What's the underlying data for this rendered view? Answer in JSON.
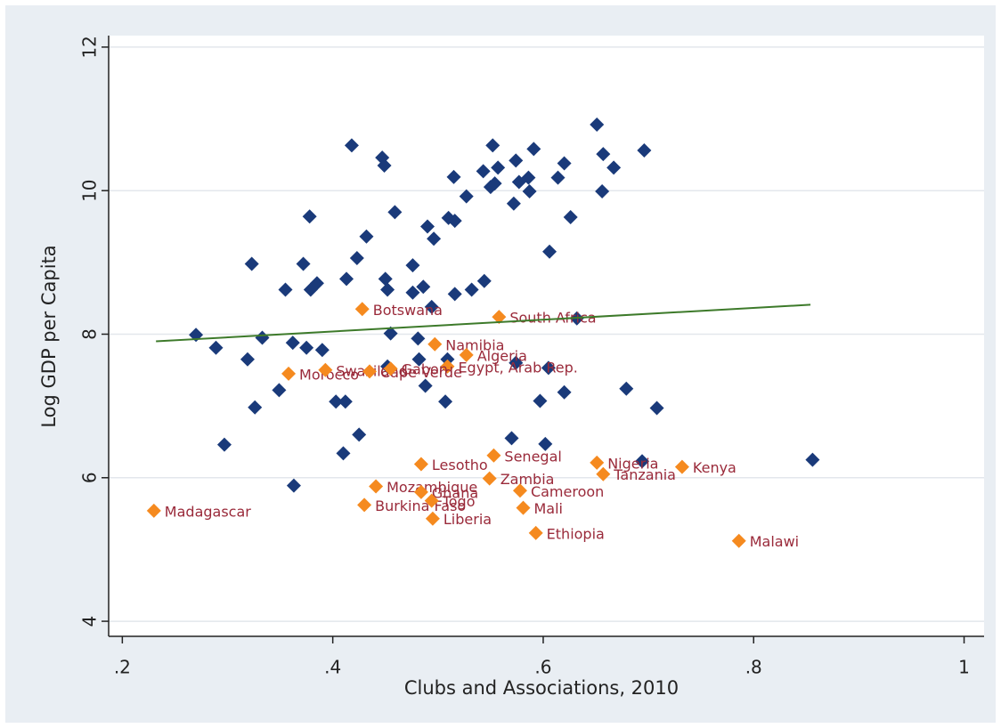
{
  "chart_data": {
    "type": "scatter",
    "x_label": "Clubs and Associations, 2010",
    "y_label": "Log GDP per Capita",
    "xlim": [
      0.187,
      1.019
    ],
    "ylim": [
      3.79,
      12.16
    ],
    "xticks": [
      {
        "value": 0.2,
        "label": ".2"
      },
      {
        "value": 0.4,
        "label": ".4"
      },
      {
        "value": 0.6,
        "label": ".6"
      },
      {
        "value": 0.8,
        "label": ".8"
      },
      1
    ],
    "yticks": [
      4,
      6,
      8,
      10,
      12
    ],
    "grid": true,
    "series": [
      {
        "color": "#1a3a7a",
        "x": [
          0.27,
          0.289,
          0.297,
          0.319,
          0.323,
          0.326,
          0.333,
          0.349,
          0.355,
          0.363,
          0.362,
          0.372,
          0.375,
          0.378,
          0.379,
          0.385,
          0.39,
          0.403,
          0.412,
          0.41,
          0.413,
          0.418,
          0.423,
          0.425,
          0.432,
          0.447,
          0.449,
          0.45,
          0.452,
          0.452,
          0.455,
          0.459,
          0.476,
          0.476,
          0.481,
          0.482,
          0.486,
          0.488,
          0.49,
          0.494,
          0.496,
          0.507,
          0.509,
          0.51,
          0.515,
          0.516,
          0.516,
          0.527,
          0.532,
          0.543,
          0.544,
          0.552,
          0.55,
          0.554,
          0.557,
          0.57,
          0.572,
          0.574,
          0.574,
          0.577,
          0.586,
          0.587,
          0.591,
          0.597,
          0.602,
          0.605,
          0.606,
          0.614,
          0.62,
          0.62,
          0.626,
          0.632,
          0.651,
          0.657,
          0.656,
          0.667,
          0.679,
          0.694,
          0.696,
          0.708,
          0.856
        ],
        "values": [
          7.99,
          7.81,
          6.46,
          7.65,
          8.98,
          6.98,
          7.95,
          7.22,
          8.62,
          5.89,
          7.88,
          8.98,
          7.81,
          9.64,
          8.62,
          8.71,
          7.78,
          7.06,
          7.06,
          6.34,
          8.77,
          10.63,
          9.06,
          6.6,
          9.36,
          10.46,
          10.35,
          8.77,
          8.62,
          7.55,
          8.01,
          9.7,
          8.96,
          8.58,
          7.94,
          7.65,
          8.66,
          7.28,
          9.5,
          8.38,
          9.33,
          7.06,
          7.65,
          9.62,
          10.19,
          9.58,
          8.56,
          9.92,
          8.62,
          10.27,
          8.74,
          10.63,
          10.05,
          10.1,
          10.32,
          6.55,
          9.82,
          10.42,
          7.6,
          10.12,
          10.18,
          9.99,
          10.58,
          7.07,
          6.47,
          7.53,
          9.15,
          10.18,
          7.19,
          10.38,
          9.63,
          8.22,
          10.92,
          10.51,
          9.99,
          10.32,
          7.24,
          6.23,
          10.56,
          6.97,
          6.25
        ]
      },
      {
        "color": "#f58a1f",
        "label_color": "#9a2a3a",
        "labels": [
          "Madagascar",
          "Botswana",
          "South Africa",
          "Namibia",
          "Algeria",
          "Egypt, Arab Rep.",
          "Morocco",
          "Swaziland",
          "Cape Verde",
          "Gabon",
          "Lesotho",
          "Senegal",
          "Nigeria",
          "Tanzania",
          "Kenya",
          "Zambia",
          "Mozambique",
          "Ghana",
          "Cameroon",
          "Burkina Faso",
          "Togo",
          "Mali",
          "Liberia",
          "Ethiopia",
          "Malawi"
        ],
        "x": [
          0.23,
          0.428,
          0.558,
          0.497,
          0.527,
          0.509,
          0.358,
          0.393,
          0.435,
          0.455,
          0.484,
          0.553,
          0.651,
          0.657,
          0.732,
          0.549,
          0.441,
          0.484,
          0.578,
          0.43,
          0.494,
          0.581,
          0.495,
          0.593,
          0.786
        ],
        "values": [
          5.54,
          8.35,
          8.24,
          7.86,
          7.71,
          7.55,
          7.45,
          7.5,
          7.48,
          7.52,
          6.19,
          6.31,
          6.21,
          6.05,
          6.15,
          5.99,
          5.88,
          5.8,
          5.82,
          5.62,
          5.68,
          5.58,
          5.43,
          5.23,
          5.12
        ]
      }
    ],
    "fit_line": {
      "color": "#3d7a2a",
      "x": [
        0.232,
        0.854
      ],
      "values": [
        7.9,
        8.41
      ]
    }
  }
}
